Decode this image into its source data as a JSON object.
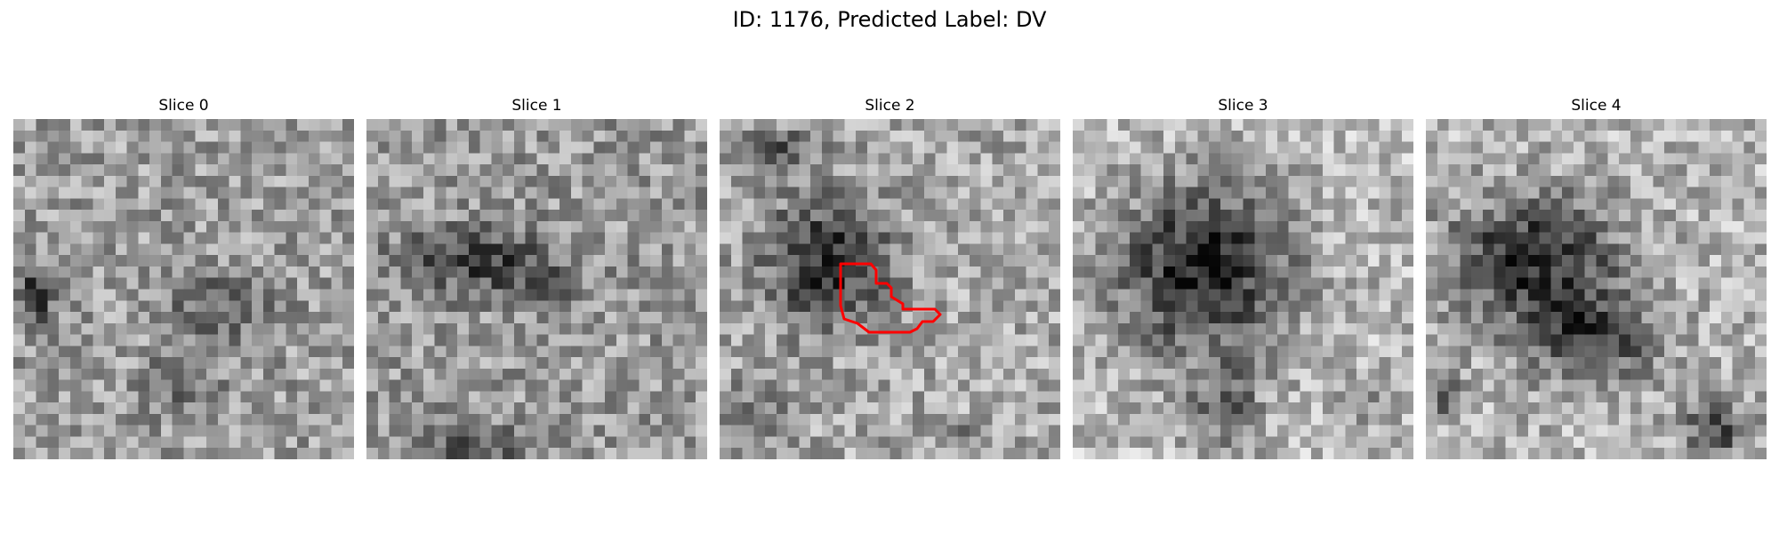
{
  "figure": {
    "title": "ID: 1176, Predicted Label: DV"
  },
  "panels": [
    {
      "title": "Slice 0"
    },
    {
      "title": "Slice 1"
    },
    {
      "title": "Slice 2",
      "contour_color": "#ff0000"
    },
    {
      "title": "Slice 3"
    },
    {
      "title": "Slice 4"
    }
  ]
}
